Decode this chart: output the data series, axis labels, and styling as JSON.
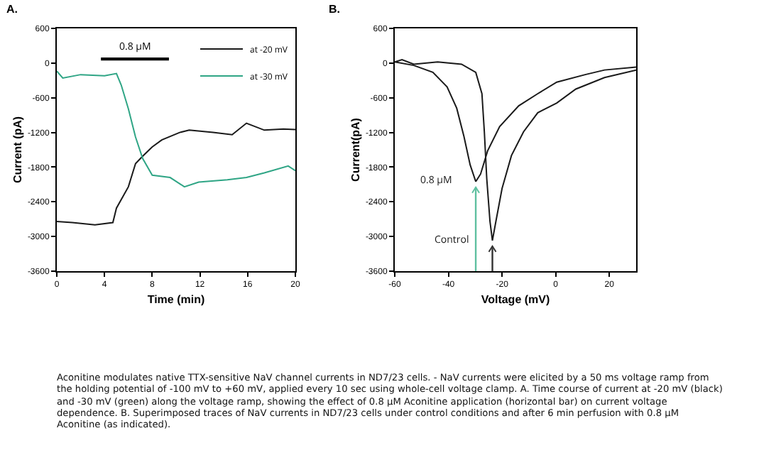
{
  "chart_data": [
    {
      "type": "line",
      "title": "A.",
      "xlabel": "Time (min)",
      "ylabel": "Current (pA)",
      "xlim": [
        0,
        20
      ],
      "xticks": [
        0,
        4,
        8,
        12,
        16,
        20
      ],
      "ylim": [
        -3600,
        600
      ],
      "yticks": [
        -3600,
        -3000,
        -2400,
        -1800,
        -1200,
        -600,
        0,
        600
      ],
      "grid": false,
      "legend": "top right",
      "marker": "none",
      "line_style": "solid",
      "series": [
        {
          "name": "0.8 µM",
          "color": "#000000",
          "x": [
            3.7,
            9.4
          ],
          "values": [
            70,
            70
          ]
        },
        {
          "name": "at -20 mV",
          "color": "#1a1a1a",
          "x": [
            0,
            1.3,
            3.2,
            4.7,
            5.0,
            6.0,
            6.6,
            7.2,
            8.0,
            8.8,
            10.3,
            11.1,
            13.1,
            14.7,
            15.9,
            17.4,
            19.0,
            20
          ],
          "values": [
            -2740,
            -2760,
            -2800,
            -2760,
            -2510,
            -2140,
            -1740,
            -1610,
            -1450,
            -1330,
            -1200,
            -1160,
            -1200,
            -1240,
            -1040,
            -1160,
            -1140,
            -1150
          ]
        },
        {
          "name": "at -30 mV",
          "color": "#2fa585",
          "x": [
            0,
            0.5,
            2.0,
            4.0,
            5.0,
            5.4,
            6.0,
            6.6,
            7.2,
            8.0,
            9.5,
            10.7,
            11.9,
            14.3,
            15.9,
            17.4,
            19.4,
            20
          ],
          "values": [
            -140,
            -260,
            -200,
            -220,
            -180,
            -380,
            -790,
            -1280,
            -1650,
            -1940,
            -1980,
            -2140,
            -2060,
            -2020,
            -1980,
            -1900,
            -1780,
            -1860
          ]
        }
      ]
    },
    {
      "type": "line",
      "title": "B.",
      "xlabel": "Voltage (mV)",
      "ylabel": "Current(pA)",
      "xlim": [
        -60,
        30
      ],
      "xticks": [
        -60,
        -40,
        -20,
        0,
        20
      ],
      "ylim": [
        -3600,
        600
      ],
      "yticks": [
        -3600,
        -3000,
        -2400,
        -1800,
        -1200,
        -600,
        0,
        600
      ],
      "grid": false,
      "legend": false,
      "marker": "none",
      "line_style": "solid",
      "annotations": [
        "Aconitine modulates native TTX-sensitive NaV channel currents in ND7/23 cells. - NaV currents were elicited by a 50 ms voltage ramp from the holding potential of -100 mV to +60 mV, applied every 10 sec using whole-cell voltage clamp. A. Time course of current at -20 mV (black) and -30 mV (green) along the voltage ramp, showing the effect of 0.8 µM Aconitine application (horizontal bar) on current voltage dependence. B. Superimposed traces of NaV currents in ND7/23 cells under control conditions and after 6 min perfusion with 0.8 µM Aconitine (as indicated)."
      ],
      "series": [
        {
          "name": "Control",
          "color": "#1a1a1a",
          "x": [
            -60,
            -57.3,
            -52.9,
            -44,
            -35.1,
            -29.8,
            -27.5,
            -26.6,
            -25.7,
            -24.5,
            -23.6,
            -22.3,
            -20,
            -16.5,
            -12,
            -6.7,
            0.4,
            7.5,
            18.2,
            30
          ],
          "values": [
            20,
            60,
            -20,
            20,
            -20,
            -160,
            -530,
            -1190,
            -2000,
            -2740,
            -3070,
            -2740,
            -2170,
            -1600,
            -1190,
            -860,
            -690,
            -450,
            -250,
            -120
          ]
        },
        {
          "name": "0.8 µM",
          "color": "#1a1a1a",
          "x": [
            -60,
            -52.9,
            -45.8,
            -40.5,
            -36.9,
            -34.2,
            -31.9,
            -29.8,
            -28,
            -25.4,
            -20.9,
            -13.8,
            -6.7,
            0.4,
            11,
            18.2,
            30
          ],
          "values": [
            20,
            -40,
            -160,
            -410,
            -780,
            -1270,
            -1760,
            -2050,
            -1920,
            -1520,
            -1100,
            -740,
            -530,
            -330,
            -200,
            -120,
            -70
          ]
        }
      ]
    }
  ]
}
